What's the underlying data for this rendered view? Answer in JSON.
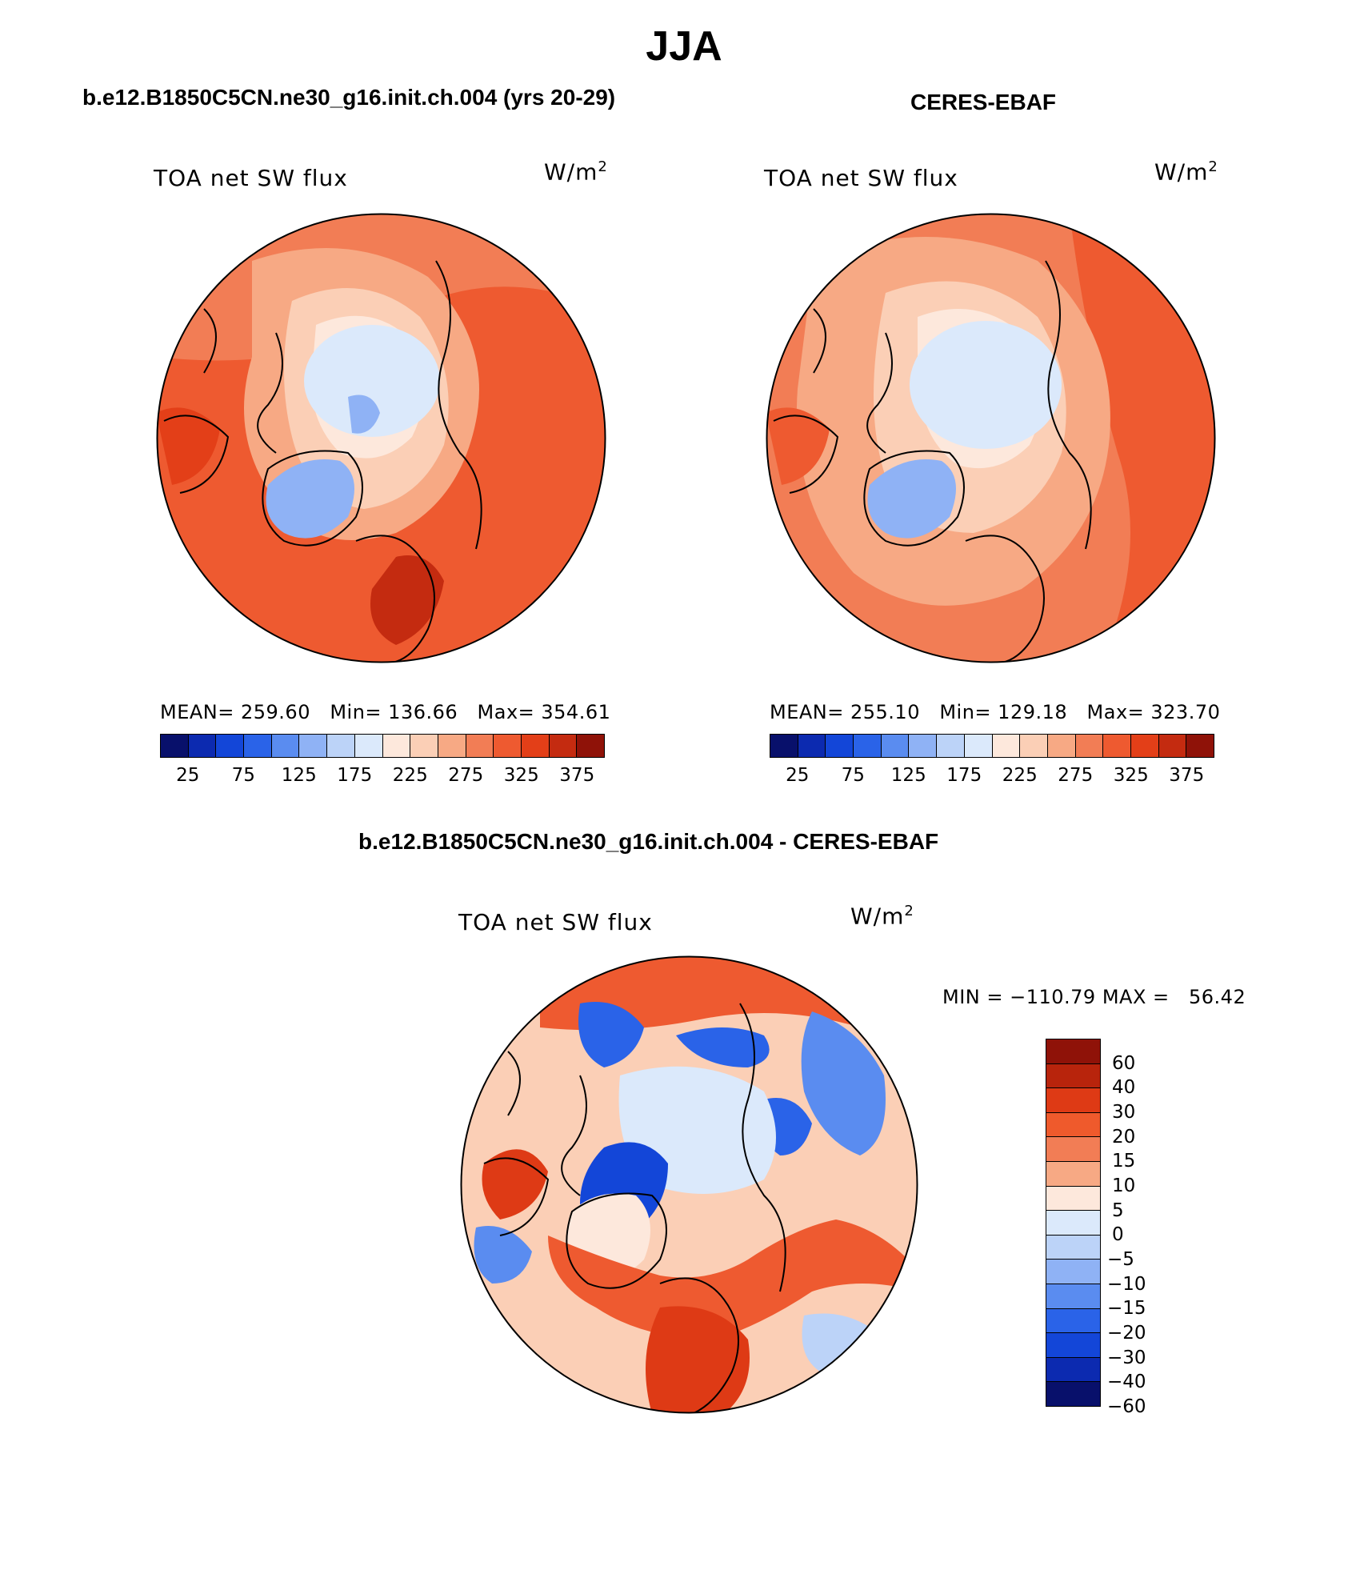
{
  "title": "JJA",
  "panels": [
    {
      "id": "model",
      "heading": "b.e12.B1850C5CN.ne30_g16.init.ch.004 (yrs 20-29)",
      "label": "TOA net SW flux",
      "units_base": "W/m",
      "units_exp": "2",
      "stats": "MEAN= 259.60   Min= 136.66   Max= 354.61"
    },
    {
      "id": "obs",
      "heading": "CERES-EBAF",
      "label": "TOA net SW flux",
      "units_base": "W/m",
      "units_exp": "2",
      "stats": "MEAN= 255.10   Min= 129.18   Max= 323.70"
    },
    {
      "id": "diff",
      "heading": "b.e12.B1850C5CN.ne30_g16.init.ch.004 - CERES-EBAF",
      "label": "TOA net SW flux",
      "units_base": "W/m",
      "units_exp": "2",
      "stats": "MIN = −110.79 MAX =   56.42"
    }
  ],
  "colorbar_top": {
    "colors": [
      "#08106b",
      "#0c2ab0",
      "#1346d8",
      "#2a63e8",
      "#5a8cf0",
      "#8fb2f5",
      "#bcd3f8",
      "#dbe9fb",
      "#fde8dc",
      "#fbcfb6",
      "#f7a984",
      "#f27d55",
      "#ee5a30",
      "#e33f18",
      "#c42b10",
      "#8f1208"
    ],
    "ticks": [
      "25",
      "75",
      "125",
      "175",
      "225",
      "275",
      "325",
      "375"
    ]
  },
  "colorbar_diff": {
    "colors": [
      "#8f1208",
      "#b8240c",
      "#de3a15",
      "#ef5a2c",
      "#f27d55",
      "#f7a984",
      "#fde8dc",
      "#dbe9fb",
      "#bcd3f8",
      "#8fb2f5",
      "#5a8cf0",
      "#2a63e8",
      "#1346d8",
      "#0c2ab0",
      "#08106b"
    ],
    "ticks": [
      "60",
      "40",
      "30",
      "20",
      "15",
      "10",
      "5",
      "0",
      "−5",
      "−10",
      "−15",
      "−20",
      "−30",
      "−40",
      "−60"
    ]
  }
}
